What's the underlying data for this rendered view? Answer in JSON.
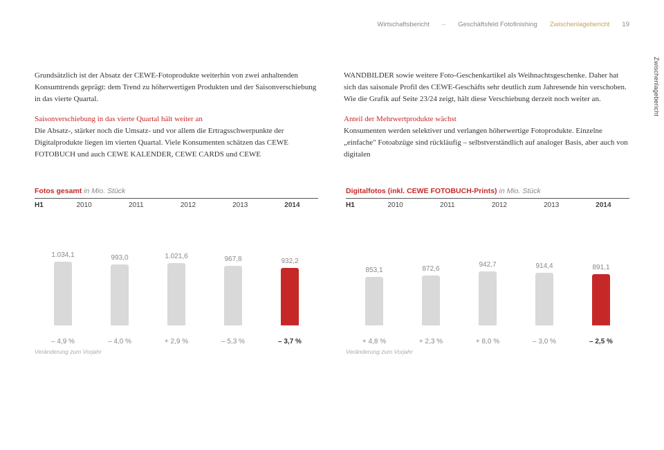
{
  "header": {
    "left": "Wirtschaftsbericht",
    "sep": "–",
    "mid": "Geschäftsfeld Fotofinishing",
    "right": "Zwischenlagebericht",
    "page": "19"
  },
  "sideTab": "Zwischenlagebericht",
  "col1": {
    "p1": "Grundsätzlich ist der Absatz der CEWE-Fotoprodukte weiterhin von zwei anhaltenden Konsumtrends geprägt: dem Trend zu höherwertigen Produkten und der Saisonverschiebung in das vierte Quartal.",
    "h1": "Saisonverschiebung in das vierte Quartal hält weiter an",
    "p2": "Die Absatz-, stärker noch die Umsatz- und vor allem die Ertragsschwerpunkte der Digitalprodukte liegen im vierten Quartal. Viele Konsumenten schätzen das CEWE FOTOBUCH und auch CEWE KALENDER, CEWE CARDS und CEWE"
  },
  "col2": {
    "p1": "WANDBILDER sowie weitere Foto-Geschenkartikel als Weihnachtsgeschenke. Daher hat sich das saisonale Profil des CEWE-Geschäfts sehr deutlich zum Jahresende hin verschoben. Wie die Grafik auf Seite 23/24 zeigt, hält diese Verschiebung derzeit noch weiter an.",
    "h1": "Anteil der Mehrwertprodukte wächst",
    "p2": "Konsumenten werden selektiver und verlangen höherwertige Fotoprodukte. Einzelne „einfache\" Fotoabzüge sind rückläufig – selbstverständlich auf analoger Basis, aber auch von digitalen"
  },
  "chart1": {
    "title": "Fotos gesamt",
    "unit": "in Mio. Stück",
    "h1label": "H1",
    "years": [
      "2010",
      "2011",
      "2012",
      "2013",
      "2014"
    ],
    "labels": [
      "1.034,1",
      "993,0",
      "1.021,6",
      "967,8",
      "932,2"
    ],
    "heights": [
      92,
      88,
      90,
      86,
      83
    ],
    "colors": [
      "#d9d9d9",
      "#d9d9d9",
      "#d9d9d9",
      "#d9d9d9",
      "#c62828"
    ],
    "deltas": [
      "– 4,9 %",
      "– 4,0 %",
      "+ 2,9 %",
      "– 5,3 %",
      "– 3,7 %"
    ],
    "footnote": "Veränderung zum Vorjahr"
  },
  "chart2": {
    "title": "Digitalfotos (inkl. CEWE FOTOBUCH-Prints)",
    "unit": "in Mio. Stück",
    "h1label": "H1",
    "years": [
      "2010",
      "2011",
      "2012",
      "2013",
      "2014"
    ],
    "labels": [
      "853,1",
      "872,6",
      "942,7",
      "914,4",
      "891,1"
    ],
    "heights": [
      70,
      72,
      78,
      76,
      74
    ],
    "colors": [
      "#d9d9d9",
      "#d9d9d9",
      "#d9d9d9",
      "#d9d9d9",
      "#c62828"
    ],
    "deltas": [
      "+ 4,8 %",
      "+ 2,3 %",
      "+ 8,0 %",
      "– 3,0 %",
      "– 2,5 %"
    ],
    "footnote": "Veränderung zum Vorjahr"
  }
}
